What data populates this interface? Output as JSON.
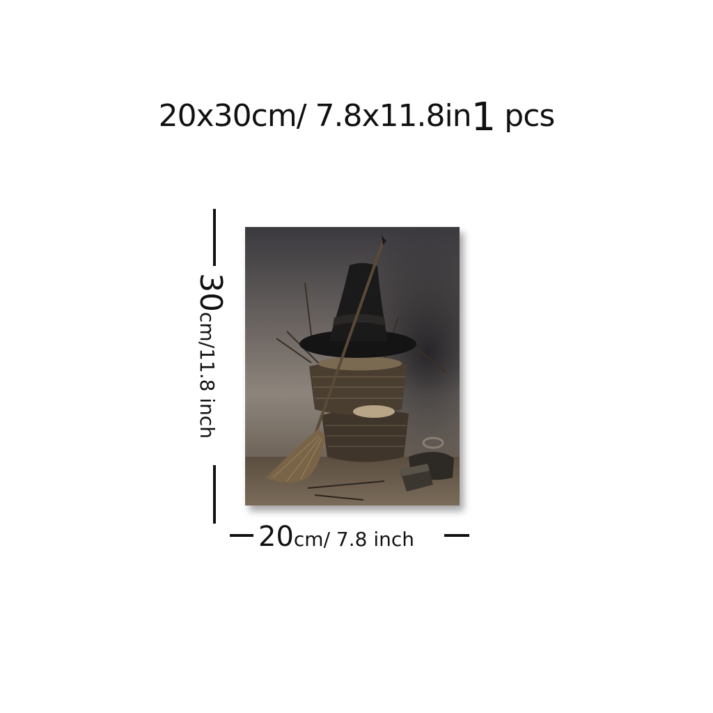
{
  "header": {
    "size_text": "20x30cm/ 7.8x11.8in",
    "qty_number": "1",
    "qty_unit": "pcs"
  },
  "dimensions": {
    "height_value": "30",
    "height_unit": "cm/11.8 inch",
    "width_value": "20",
    "width_unit": "cm/ 7.8 inch"
  },
  "painting": {
    "subject": "witch-hat-broom-basket-still-life",
    "colors": {
      "sky_dark": "#3b3a3e",
      "sky_light": "#8c8580",
      "hat": "#151414",
      "basket": "#4a3e31",
      "straw": "#7a6448"
    }
  }
}
